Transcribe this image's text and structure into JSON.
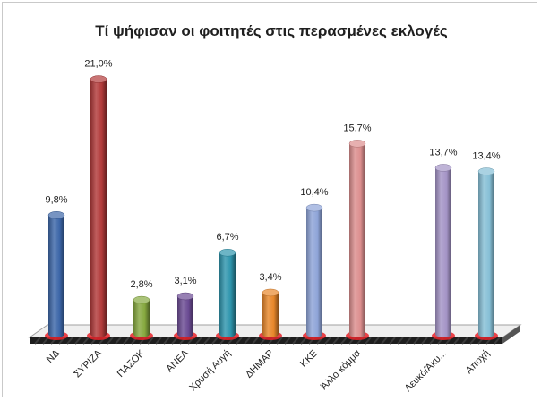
{
  "chart_data": {
    "type": "bar",
    "title": "Τί ψήφισαν οι φοιτητές στις περασμένες εκλογές",
    "xlabel": "",
    "ylabel": "",
    "ylim": [
      0,
      22
    ],
    "grid": false,
    "legend": "none",
    "categories": [
      "ΝΔ",
      "ΣΥΡΙΖΑ",
      "ΠΑΣΟΚ",
      "ΑΝΕΛ",
      "Χρυσή Αυγή",
      "ΔΗΜΑΡ",
      "ΚΚΕ",
      "Άλλο κόμμα",
      "Λευκό/Άκυ...",
      "Αποχή"
    ],
    "values": [
      9.8,
      21.0,
      2.8,
      3.1,
      6.7,
      3.4,
      10.4,
      15.7,
      13.7,
      13.4
    ],
    "value_labels": [
      "9,8%",
      "21,0%",
      "2,8%",
      "3,1%",
      "6,7%",
      "3,4%",
      "10,4%",
      "15,7%",
      "13,7%",
      "13,4%"
    ],
    "colors": [
      "#3c66a8",
      "#b23a3a",
      "#86a93f",
      "#6a4a92",
      "#2e95ad",
      "#e8872a",
      "#8ea4d8",
      "#dc8e8e",
      "#a494c6",
      "#86bfd6"
    ]
  }
}
